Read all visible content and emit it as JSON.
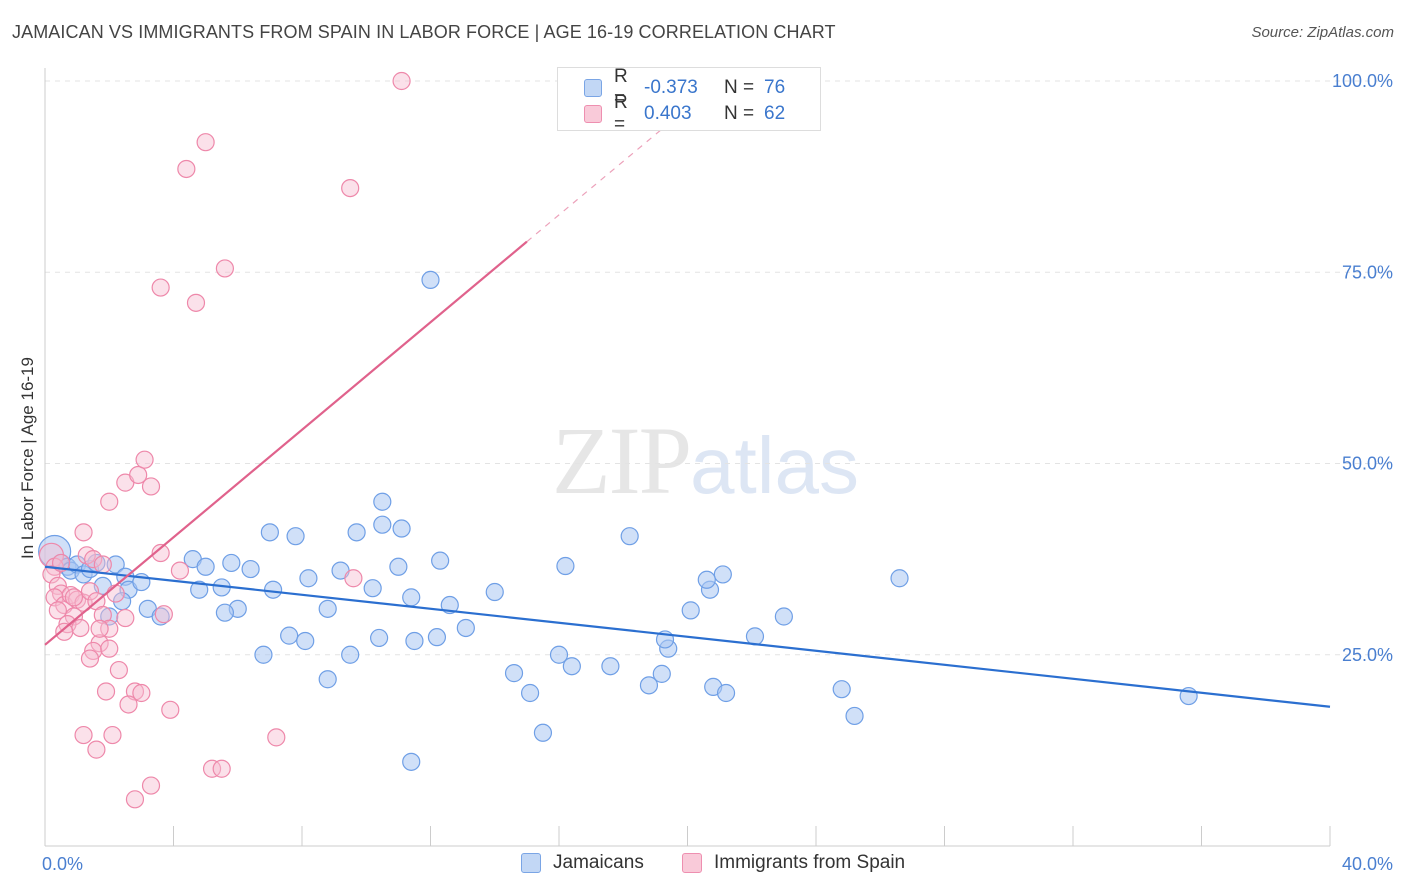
{
  "header": {
    "title": "JAMAICAN VS IMMIGRANTS FROM SPAIN IN LABOR FORCE | AGE 16-19 CORRELATION CHART",
    "source": "Source: ZipAtlas.com"
  },
  "watermark": {
    "zip": "ZIP",
    "atlas": "atlas"
  },
  "legend": {
    "rows": [
      {
        "r_label": "R =",
        "r_value": "-0.373",
        "n_label": "N =",
        "n_value": "76"
      },
      {
        "r_label": "R =",
        "r_value": "0.403",
        "n_label": "N =",
        "n_value": "62"
      }
    ],
    "bottom": [
      "Jamaicans",
      "Immigrants from Spain"
    ]
  },
  "colors": {
    "blue": "#6f9fe6",
    "blue_fill": "#a9c6f2",
    "blue_line": "#2b6fd0",
    "pink": "#ee88aa",
    "pink_fill": "#f6bcd0",
    "pink_line": "#e0628c",
    "tick": "#4a7fd0"
  },
  "chart_data": {
    "type": "scatter",
    "title": "JAMAICAN VS IMMIGRANTS FROM SPAIN IN LABOR FORCE | AGE 16-19 CORRELATION CHART",
    "xlabel": "",
    "ylabel": "In Labor Force | Age 16-19",
    "xlim": [
      0,
      40
    ],
    "ylim": [
      0,
      100
    ],
    "x_tick_labels": [
      "0.0%",
      "40.0%"
    ],
    "y_tick_labels": [
      "25.0%",
      "50.0%",
      "75.0%",
      "100.0%"
    ],
    "y_ticks": [
      25,
      50,
      75,
      100
    ],
    "grid": true,
    "legend_position": "top-center",
    "series": [
      {
        "name": "Jamaicans",
        "r": -0.373,
        "n": 76,
        "trend": {
          "x": [
            0,
            40
          ],
          "y": [
            36.5,
            18.2
          ]
        },
        "points": [
          [
            0.3,
            38.5
          ],
          [
            0.5,
            37.0
          ],
          [
            0.7,
            36.5
          ],
          [
            0.8,
            36.0
          ],
          [
            1.0,
            36.8
          ],
          [
            1.2,
            35.5
          ],
          [
            1.4,
            36.2
          ],
          [
            1.6,
            37.0
          ],
          [
            2.2,
            36.8
          ],
          [
            1.8,
            34.0
          ],
          [
            2.5,
            35.2
          ],
          [
            2.6,
            33.5
          ],
          [
            2.4,
            32.0
          ],
          [
            2.0,
            30.0
          ],
          [
            3.0,
            34.5
          ],
          [
            3.2,
            31.0
          ],
          [
            3.6,
            30.0
          ],
          [
            4.8,
            33.5
          ],
          [
            4.6,
            37.5
          ],
          [
            5.0,
            36.5
          ],
          [
            5.8,
            37.0
          ],
          [
            6.4,
            36.2
          ],
          [
            5.5,
            33.8
          ],
          [
            6.0,
            31.0
          ],
          [
            5.6,
            30.5
          ],
          [
            7.0,
            41.0
          ],
          [
            7.8,
            40.5
          ],
          [
            7.1,
            33.5
          ],
          [
            8.2,
            35.0
          ],
          [
            7.6,
            27.5
          ],
          [
            8.1,
            26.8
          ],
          [
            6.8,
            25.0
          ],
          [
            8.8,
            31.0
          ],
          [
            9.7,
            41.0
          ],
          [
            10.5,
            42.0
          ],
          [
            11.1,
            41.5
          ],
          [
            11.0,
            36.5
          ],
          [
            9.2,
            36.0
          ],
          [
            10.2,
            33.7
          ],
          [
            11.4,
            32.5
          ],
          [
            12.3,
            37.3
          ],
          [
            12.6,
            31.5
          ],
          [
            13.1,
            28.5
          ],
          [
            14.0,
            33.2
          ],
          [
            12.2,
            27.3
          ],
          [
            11.5,
            26.8
          ],
          [
            10.4,
            27.2
          ],
          [
            9.5,
            25.0
          ],
          [
            8.8,
            21.8
          ],
          [
            10.5,
            45.0
          ],
          [
            12.0,
            74.0
          ],
          [
            15.1,
            20.0
          ],
          [
            14.6,
            22.6
          ],
          [
            16.0,
            25.0
          ],
          [
            16.4,
            23.5
          ],
          [
            15.5,
            14.8
          ],
          [
            11.4,
            11.0
          ],
          [
            16.2,
            36.6
          ],
          [
            18.2,
            40.5
          ],
          [
            17.6,
            23.5
          ],
          [
            18.8,
            21.0
          ],
          [
            19.2,
            22.5
          ],
          [
            19.4,
            25.8
          ],
          [
            19.3,
            27.0
          ],
          [
            20.1,
            30.8
          ],
          [
            20.7,
            33.5
          ],
          [
            21.1,
            35.5
          ],
          [
            20.6,
            34.8
          ],
          [
            22.1,
            27.4
          ],
          [
            23.0,
            30.0
          ],
          [
            20.8,
            20.8
          ],
          [
            21.2,
            20.0
          ],
          [
            24.8,
            20.5
          ],
          [
            25.2,
            17.0
          ],
          [
            26.6,
            35.0
          ],
          [
            35.6,
            19.6
          ]
        ]
      },
      {
        "name": "Immigrants from Spain",
        "r": 0.403,
        "n": 62,
        "trend": {
          "x": [
            0,
            15
          ],
          "y": [
            26.3,
            79.0
          ],
          "dashed_to": {
            "x": 20,
            "y": 96.5
          }
        },
        "points": [
          [
            0.2,
            38.0
          ],
          [
            0.3,
            36.5
          ],
          [
            0.2,
            35.5
          ],
          [
            0.4,
            34.0
          ],
          [
            0.5,
            33.0
          ],
          [
            0.3,
            32.5
          ],
          [
            0.6,
            31.5
          ],
          [
            0.4,
            30.8
          ],
          [
            0.8,
            32.8
          ],
          [
            1.0,
            32.2
          ],
          [
            1.2,
            31.8
          ],
          [
            0.9,
            30.0
          ],
          [
            0.7,
            29.0
          ],
          [
            1.1,
            28.5
          ],
          [
            1.4,
            33.3
          ],
          [
            1.6,
            32.0
          ],
          [
            1.8,
            30.2
          ],
          [
            2.2,
            33.0
          ],
          [
            2.5,
            29.8
          ],
          [
            2.0,
            28.4
          ],
          [
            1.7,
            26.5
          ],
          [
            1.5,
            25.5
          ],
          [
            1.4,
            24.5
          ],
          [
            1.2,
            41.0
          ],
          [
            1.3,
            38.0
          ],
          [
            1.5,
            37.5
          ],
          [
            1.8,
            36.8
          ],
          [
            2.0,
            45.0
          ],
          [
            2.5,
            47.5
          ],
          [
            2.9,
            48.5
          ],
          [
            3.1,
            50.5
          ],
          [
            3.3,
            47.0
          ],
          [
            3.6,
            38.3
          ],
          [
            4.2,
            36.0
          ],
          [
            3.7,
            30.3
          ],
          [
            1.9,
            20.2
          ],
          [
            2.8,
            20.2
          ],
          [
            2.6,
            18.5
          ],
          [
            3.0,
            20.0
          ],
          [
            2.3,
            23.0
          ],
          [
            1.2,
            14.5
          ],
          [
            2.1,
            14.5
          ],
          [
            1.6,
            12.6
          ],
          [
            3.9,
            17.8
          ],
          [
            2.8,
            6.1
          ],
          [
            3.3,
            7.9
          ],
          [
            5.2,
            10.1
          ],
          [
            5.5,
            10.1
          ],
          [
            7.2,
            14.2
          ],
          [
            3.6,
            73.0
          ],
          [
            4.7,
            71.0
          ],
          [
            5.6,
            75.5
          ],
          [
            4.4,
            88.5
          ],
          [
            5.0,
            92.0
          ],
          [
            9.5,
            86.0
          ],
          [
            11.1,
            100.0
          ],
          [
            9.6,
            35.0
          ],
          [
            1.7,
            28.4
          ],
          [
            2.0,
            25.8
          ],
          [
            0.6,
            28.0
          ],
          [
            0.9,
            32.5
          ],
          [
            0.5,
            37.0
          ]
        ]
      }
    ]
  }
}
